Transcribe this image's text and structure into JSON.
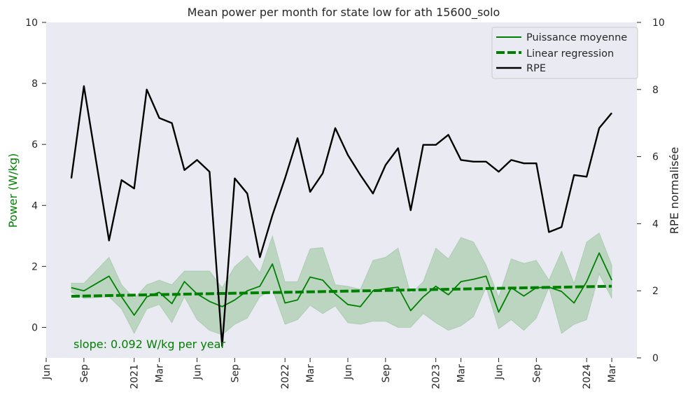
{
  "chart_data": {
    "type": "line",
    "title": "Mean power per month for state low for ath 15600_solo",
    "ylabel_left": "Power (W/kg)",
    "ylabel_right": "RPE normalisée",
    "ylim_left": [
      -1,
      10
    ],
    "ylim_right": [
      0,
      10
    ],
    "yticks_left": [
      0,
      2,
      4,
      6,
      8,
      10
    ],
    "yticks_right": [
      0,
      2,
      4,
      6,
      8,
      10
    ],
    "x_range": [
      "2020-06",
      "2024-05"
    ],
    "x_ticks": [
      {
        "label": "Jun",
        "x": "2020-06"
      },
      {
        "label": "Sep",
        "x": "2020-09"
      },
      {
        "label": "2021",
        "x": "2021-01"
      },
      {
        "label": "Mar",
        "x": "2021-03"
      },
      {
        "label": "Jun",
        "x": "2021-06"
      },
      {
        "label": "Sep",
        "x": "2021-09"
      },
      {
        "label": "2022",
        "x": "2022-01"
      },
      {
        "label": "Mar",
        "x": "2022-03"
      },
      {
        "label": "Jun",
        "x": "2022-06"
      },
      {
        "label": "Sep",
        "x": "2022-09"
      },
      {
        "label": "2023",
        "x": "2023-01"
      },
      {
        "label": "Mar",
        "x": "2023-03"
      },
      {
        "label": "Jun",
        "x": "2023-06"
      },
      {
        "label": "Sep",
        "x": "2023-09"
      },
      {
        "label": "2024",
        "x": "2024-01"
      },
      {
        "label": "Mar",
        "x": "2024-03"
      }
    ],
    "x": [
      "2020-08",
      "2020-09",
      "2020-11",
      "2020-12",
      "2021-01",
      "2021-02",
      "2021-03",
      "2021-04",
      "2021-05",
      "2021-06",
      "2021-07",
      "2021-08",
      "2021-09",
      "2021-10",
      "2021-11",
      "2021-12",
      "2022-01",
      "2022-02",
      "2022-03",
      "2022-04",
      "2022-05",
      "2022-06",
      "2022-07",
      "2022-08",
      "2022-09",
      "2022-10",
      "2022-11",
      "2022-12",
      "2023-01",
      "2023-02",
      "2023-03",
      "2023-04",
      "2023-05",
      "2023-06",
      "2023-07",
      "2023-08",
      "2023-09",
      "2023-10",
      "2023-11",
      "2023-12",
      "2024-01",
      "2024-02",
      "2024-03"
    ],
    "series": [
      {
        "name": "Puissance moyenne",
        "axis": "left",
        "color": "#008000",
        "values": [
          1.3,
          1.2,
          1.68,
          1.0,
          0.4,
          1.0,
          1.15,
          0.78,
          1.5,
          1.1,
          0.85,
          0.68,
          0.9,
          1.2,
          1.35,
          2.08,
          0.8,
          0.9,
          1.65,
          1.55,
          1.1,
          0.75,
          0.68,
          1.2,
          1.27,
          1.32,
          0.55,
          1.0,
          1.35,
          1.07,
          1.5,
          1.58,
          1.68,
          0.5,
          1.3,
          1.03,
          1.3,
          1.32,
          1.18,
          0.8,
          1.5,
          2.44,
          1.55
        ],
        "band_low": [
          1.15,
          0.95,
          1.0,
          0.6,
          -0.2,
          0.6,
          0.75,
          0.15,
          1.0,
          0.25,
          -0.1,
          -0.25,
          0.1,
          0.3,
          1.0,
          1.25,
          0.1,
          0.25,
          0.72,
          0.45,
          0.7,
          0.15,
          0.1,
          0.2,
          0.2,
          0.0,
          0.0,
          0.45,
          0.15,
          -0.1,
          0.05,
          0.35,
          1.32,
          -0.05,
          0.25,
          -0.1,
          0.3,
          1.3,
          -0.2,
          0.1,
          0.25,
          1.75,
          0.95
        ],
        "band_high": [
          1.45,
          1.45,
          2.3,
          1.4,
          0.95,
          1.4,
          1.55,
          1.4,
          1.85,
          1.85,
          1.85,
          1.3,
          2.0,
          2.35,
          1.8,
          3.0,
          1.5,
          1.5,
          2.58,
          2.62,
          1.4,
          1.35,
          1.25,
          2.2,
          2.3,
          2.6,
          1.1,
          1.5,
          2.6,
          2.25,
          2.95,
          2.8,
          2.05,
          1.0,
          2.25,
          2.1,
          2.2,
          1.55,
          2.5,
          1.45,
          2.8,
          3.1,
          2.05
        ]
      },
      {
        "name": "Linear regression",
        "axis": "left",
        "color": "#008000",
        "style": "dashed",
        "x": [
          "2020-08",
          "2024-03"
        ],
        "values": [
          1.02,
          1.35
        ]
      },
      {
        "name": "RPE",
        "axis": "right",
        "color": "#000000",
        "values": [
          5.35,
          8.1,
          3.5,
          5.3,
          5.05,
          8.0,
          7.15,
          7.0,
          5.6,
          5.9,
          5.55,
          0.35,
          5.35,
          4.9,
          3.0,
          4.25,
          5.35,
          6.55,
          4.95,
          5.5,
          6.85,
          6.05,
          5.45,
          4.9,
          5.75,
          6.25,
          4.4,
          6.35,
          6.35,
          6.65,
          5.9,
          5.85,
          5.85,
          5.55,
          5.9,
          5.8,
          5.8,
          3.75,
          3.9,
          5.45,
          5.4,
          6.85,
          7.3
        ]
      }
    ],
    "legend": {
      "position": "top-right",
      "entries": [
        "Puissance moyenne",
        "Linear regression",
        "RPE"
      ]
    },
    "annotation": "slope: 0.092 W/kg per year",
    "grid": false
  },
  "colors": {
    "plot_background": "#eaeaf2",
    "power": "#008000",
    "band": "#008000",
    "rpe": "#000000",
    "text": "#262626"
  }
}
